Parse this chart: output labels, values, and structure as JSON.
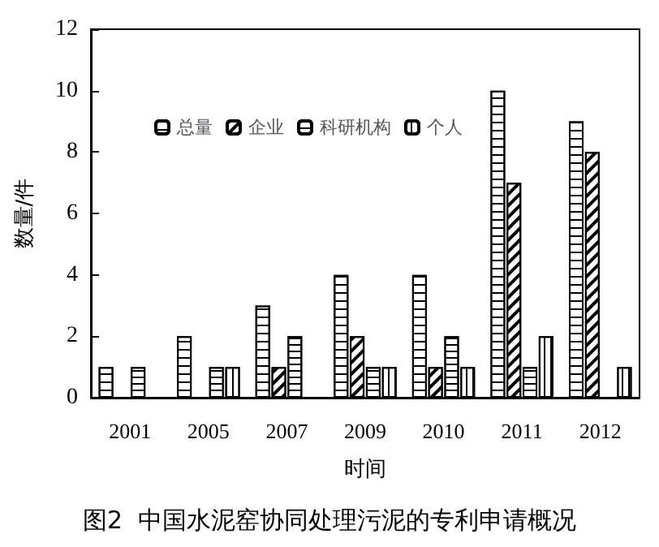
{
  "chart_data": {
    "type": "bar",
    "title": "图2  中国水泥窑协同处理污泥的专利申请概况",
    "xlabel": "时间",
    "ylabel": "数量/件",
    "categories": [
      "2001",
      "2005",
      "2007",
      "2009",
      "2010",
      "2011",
      "2012"
    ],
    "series": [
      {
        "name": "总量",
        "color": "#ffffff",
        "values": [
          1,
          2,
          3,
          4,
          4,
          10,
          9
        ]
      },
      {
        "name": "企业",
        "color": "#ffffff",
        "values": [
          0,
          0,
          1,
          2,
          1,
          7,
          8
        ]
      },
      {
        "name": "科研机构",
        "color": "#ffffff",
        "values": [
          1,
          1,
          2,
          1,
          2,
          1,
          0
        ]
      },
      {
        "name": "个人",
        "color": "#ffffff",
        "values": [
          0,
          1,
          0,
          1,
          1,
          2,
          1
        ]
      }
    ],
    "ylim": [
      0,
      12
    ],
    "yticks": [
      0,
      2,
      4,
      6,
      8,
      10,
      12
    ],
    "grid": false,
    "legend": "top"
  }
}
